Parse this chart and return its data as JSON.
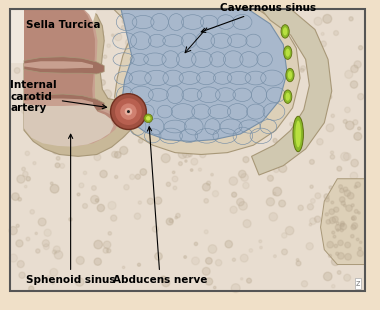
{
  "labels": {
    "cavernous_sinus": "Cavernous sinus",
    "sella_turcica": "Sella Turcica",
    "internal_carotid": "Internal\ncarotid\nartery",
    "sphenoid_sinus": "Sphenoid sinus",
    "abducens_nerve": "Abducens nerve"
  },
  "colors": {
    "background": "#f0e0c8",
    "box_bg": "#f8f0e8",
    "bone_tan": "#c8b898",
    "bone_light": "#ddd0b8",
    "bone_dark": "#a89878",
    "sella_pink": "#c8a090",
    "sella_mid": "#b88878",
    "sella_dark": "#a07060",
    "cavity_bg": "#e8ddd0",
    "cavernous_blue": "#a8b8cc",
    "cavernous_outline": "#7890a8",
    "cell_line": "#7890a8",
    "right_wall": "#d0c8b0",
    "green_nerve": "#8ab828",
    "green_nerve_light": "#b8e040",
    "green_nerve_dark": "#607010",
    "artery_outer": "#b86050",
    "artery_mid": "#d08070",
    "artery_inner": "#e8b0a0",
    "artery_center": "#202020",
    "abducens_green": "#90b020",
    "abducens_light": "#c8e850",
    "text_color": "#000000",
    "speckle_color": "#b8a890",
    "label_fs": 7.5
  }
}
